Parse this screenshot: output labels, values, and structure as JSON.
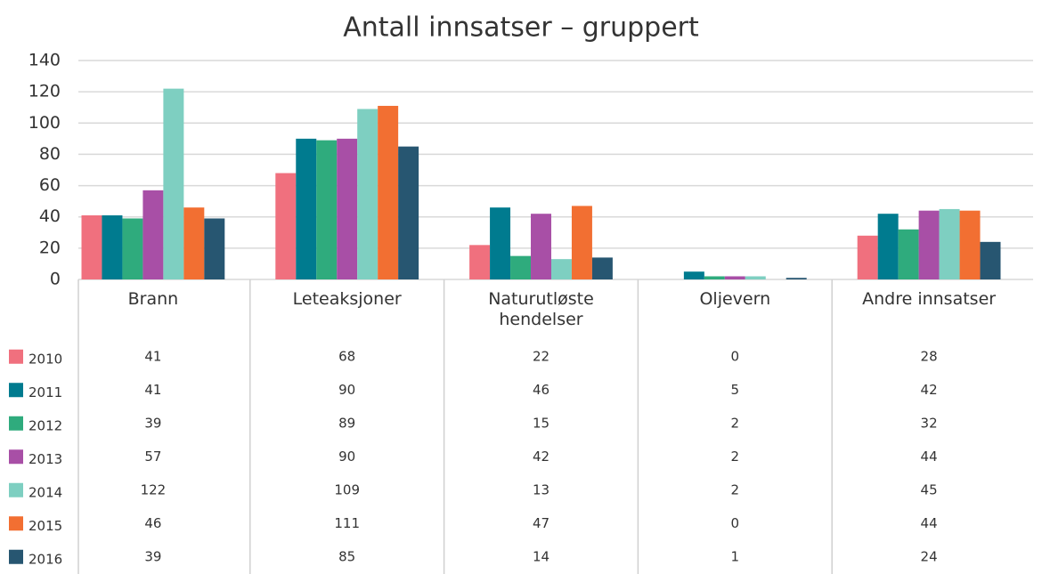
{
  "chart_data": {
    "type": "bar",
    "title": "Antall innsatser – gruppert",
    "categories": [
      "Brann",
      "Leteaksjoner",
      "Naturutløste hendelser",
      "Oljevern",
      "Andre innsatser"
    ],
    "series": [
      {
        "name": "2010",
        "color": "#f0707e",
        "values": [
          41,
          68,
          22,
          0,
          28
        ]
      },
      {
        "name": "2011",
        "color": "#007b8f",
        "values": [
          41,
          90,
          46,
          5,
          42
        ]
      },
      {
        "name": "2012",
        "color": "#2fab7d",
        "values": [
          39,
          89,
          15,
          2,
          32
        ]
      },
      {
        "name": "2013",
        "color": "#a84fa6",
        "values": [
          57,
          90,
          42,
          2,
          44
        ]
      },
      {
        "name": "2014",
        "color": "#7ecfc1",
        "values": [
          122,
          109,
          13,
          2,
          45
        ]
      },
      {
        "name": "2015",
        "color": "#f26f32",
        "values": [
          46,
          111,
          47,
          0,
          44
        ]
      },
      {
        "name": "2016",
        "color": "#275671",
        "values": [
          39,
          85,
          14,
          1,
          24
        ]
      }
    ],
    "ylim": [
      0,
      140
    ],
    "yticks": [
      0,
      20,
      40,
      60,
      80,
      100,
      120,
      140
    ],
    "grid": true
  }
}
